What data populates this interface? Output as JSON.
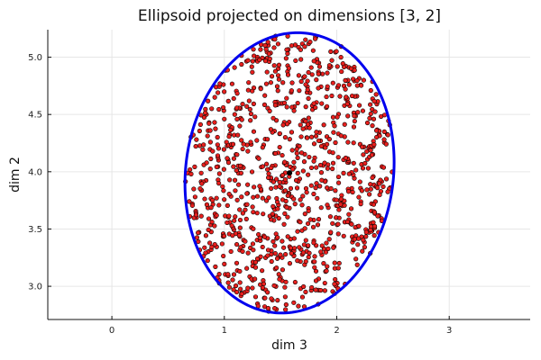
{
  "chart_data": {
    "type": "scatter",
    "title": "Ellipsoid projected on dimensions [3, 2]",
    "xlabel": "dim 3",
    "ylabel": "dim 2",
    "xlim": [
      -0.57,
      3.72
    ],
    "ylim": [
      2.71,
      5.24
    ],
    "x_ticks": [
      0,
      1,
      2,
      3
    ],
    "x_tick_labels": [
      "0",
      "1",
      "2",
      "3"
    ],
    "y_ticks": [
      3.0,
      3.5,
      4.0,
      4.5,
      5.0
    ],
    "y_tick_labels": [
      "3.0",
      "3.5",
      "4.0",
      "4.5",
      "5.0"
    ],
    "grid": true,
    "legend": "none",
    "ellipse": {
      "center": [
        1.58,
        3.99
      ],
      "semi_axis_x": 0.93,
      "semi_axis_y": 1.22,
      "tilt_slope": 0.1,
      "color": "#0000ee"
    },
    "center_point": {
      "x": 1.58,
      "y": 3.99,
      "color": "#000000"
    },
    "sample_points": {
      "count": 1000,
      "distribution": "uniform inside ellipse",
      "fill_color": "#e8201e",
      "edge_color": "#000000"
    }
  }
}
